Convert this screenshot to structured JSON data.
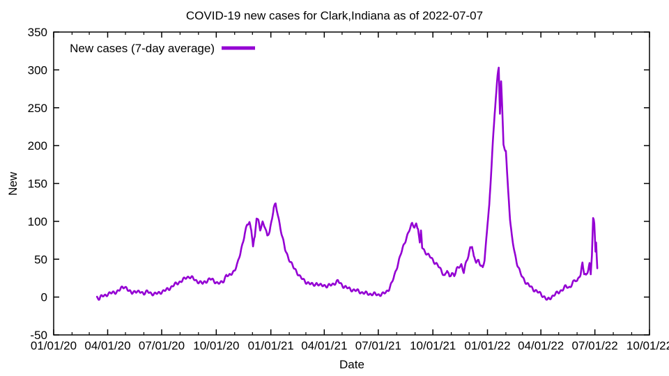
{
  "chart_data": {
    "type": "line",
    "title": "COVID-19 new cases for Clark,Indiana as of 2022-07-07",
    "xlabel": "Date",
    "ylabel": "New",
    "ylim": [
      -50,
      350
    ],
    "y_tick_step": 50,
    "y_ticks": [
      -50,
      0,
      50,
      100,
      150,
      200,
      250,
      300,
      350
    ],
    "x_range": [
      "2020-01-01",
      "2022-10-01"
    ],
    "x_ticks": [
      {
        "label": "01/01/20",
        "date": "2020-01-01"
      },
      {
        "label": "04/01/20",
        "date": "2020-04-01"
      },
      {
        "label": "07/01/20",
        "date": "2020-07-01"
      },
      {
        "label": "10/01/20",
        "date": "2020-10-01"
      },
      {
        "label": "01/01/21",
        "date": "2021-01-01"
      },
      {
        "label": "04/01/21",
        "date": "2021-04-01"
      },
      {
        "label": "07/01/21",
        "date": "2021-07-01"
      },
      {
        "label": "10/01/21",
        "date": "2021-10-01"
      },
      {
        "label": "01/01/22",
        "date": "2022-01-01"
      },
      {
        "label": "04/01/22",
        "date": "2022-04-01"
      },
      {
        "label": "07/01/22",
        "date": "2022-07-01"
      },
      {
        "label": "10/01/22",
        "date": "2022-10-01"
      }
    ],
    "x_minor_ticks": "monthly",
    "grid": false,
    "background": "#ffffff",
    "border_color": "#000000",
    "line_color": "#9400D3",
    "line_width": 2.6,
    "legend": {
      "label": "New cases (7-day average)",
      "position": "top-left-inside"
    },
    "series": [
      {
        "name": "New cases (7-day average)",
        "points": [
          [
            "2020-03-14",
            0
          ],
          [
            "2020-03-18",
            -2
          ],
          [
            "2020-03-22",
            1
          ],
          [
            "2020-03-27",
            2
          ],
          [
            "2020-04-01",
            4
          ],
          [
            "2020-04-06",
            5
          ],
          [
            "2020-04-11",
            6
          ],
          [
            "2020-04-16",
            7
          ],
          [
            "2020-04-21",
            9
          ],
          [
            "2020-04-26",
            13
          ],
          [
            "2020-04-29",
            14
          ],
          [
            "2020-05-03",
            12
          ],
          [
            "2020-05-07",
            7
          ],
          [
            "2020-05-12",
            6
          ],
          [
            "2020-05-17",
            8
          ],
          [
            "2020-05-22",
            6
          ],
          [
            "2020-05-27",
            7
          ],
          [
            "2020-06-01",
            5
          ],
          [
            "2020-06-07",
            7
          ],
          [
            "2020-06-13",
            5
          ],
          [
            "2020-06-19",
            4
          ],
          [
            "2020-06-25",
            5
          ],
          [
            "2020-07-01",
            7
          ],
          [
            "2020-07-08",
            9
          ],
          [
            "2020-07-15",
            12
          ],
          [
            "2020-07-22",
            16
          ],
          [
            "2020-07-29",
            19
          ],
          [
            "2020-08-05",
            22
          ],
          [
            "2020-08-12",
            26
          ],
          [
            "2020-08-17",
            27
          ],
          [
            "2020-08-22",
            25
          ],
          [
            "2020-08-27",
            22
          ],
          [
            "2020-09-02",
            20
          ],
          [
            "2020-09-08",
            18
          ],
          [
            "2020-09-14",
            21
          ],
          [
            "2020-09-20",
            24
          ],
          [
            "2020-09-26",
            22
          ],
          [
            "2020-10-02",
            19
          ],
          [
            "2020-10-08",
            18
          ],
          [
            "2020-10-14",
            22
          ],
          [
            "2020-10-18",
            30
          ],
          [
            "2020-10-22",
            27
          ],
          [
            "2020-10-27",
            31
          ],
          [
            "2020-11-01",
            36
          ],
          [
            "2020-11-06",
            44
          ],
          [
            "2020-11-10",
            56
          ],
          [
            "2020-11-14",
            70
          ],
          [
            "2020-11-18",
            84
          ],
          [
            "2020-11-22",
            95
          ],
          [
            "2020-11-26",
            98
          ],
          [
            "2020-11-29",
            88
          ],
          [
            "2020-12-02",
            68
          ],
          [
            "2020-12-05",
            80
          ],
          [
            "2020-12-08",
            104
          ],
          [
            "2020-12-11",
            100
          ],
          [
            "2020-12-14",
            90
          ],
          [
            "2020-12-18",
            99
          ],
          [
            "2020-12-22",
            92
          ],
          [
            "2020-12-26",
            80
          ],
          [
            "2020-12-30",
            88
          ],
          [
            "2021-01-03",
            104
          ],
          [
            "2021-01-06",
            118
          ],
          [
            "2021-01-09",
            122
          ],
          [
            "2021-01-12",
            112
          ],
          [
            "2021-01-16",
            96
          ],
          [
            "2021-01-20",
            80
          ],
          [
            "2021-01-25",
            63
          ],
          [
            "2021-01-30",
            53
          ],
          [
            "2021-02-04",
            45
          ],
          [
            "2021-02-09",
            38
          ],
          [
            "2021-02-14",
            33
          ],
          [
            "2021-02-19",
            27
          ],
          [
            "2021-02-24",
            23
          ],
          [
            "2021-03-01",
            20
          ],
          [
            "2021-03-07",
            18
          ],
          [
            "2021-03-13",
            16
          ],
          [
            "2021-03-19",
            18
          ],
          [
            "2021-03-25",
            15
          ],
          [
            "2021-03-31",
            16
          ],
          [
            "2021-04-06",
            14
          ],
          [
            "2021-04-12",
            16
          ],
          [
            "2021-04-18",
            18
          ],
          [
            "2021-04-24",
            21
          ],
          [
            "2021-04-28",
            18
          ],
          [
            "2021-05-04",
            14
          ],
          [
            "2021-05-10",
            12
          ],
          [
            "2021-05-16",
            10
          ],
          [
            "2021-05-22",
            9
          ],
          [
            "2021-05-28",
            8
          ],
          [
            "2021-06-03",
            6
          ],
          [
            "2021-06-10",
            5
          ],
          [
            "2021-06-17",
            4
          ],
          [
            "2021-06-24",
            4
          ],
          [
            "2021-07-01",
            3
          ],
          [
            "2021-07-08",
            4
          ],
          [
            "2021-07-14",
            6
          ],
          [
            "2021-07-19",
            11
          ],
          [
            "2021-07-24",
            19
          ],
          [
            "2021-07-29",
            30
          ],
          [
            "2021-08-03",
            44
          ],
          [
            "2021-08-08",
            57
          ],
          [
            "2021-08-13",
            68
          ],
          [
            "2021-08-18",
            80
          ],
          [
            "2021-08-23",
            90
          ],
          [
            "2021-08-27",
            96
          ],
          [
            "2021-08-31",
            93
          ],
          [
            "2021-09-03",
            97
          ],
          [
            "2021-09-06",
            90
          ],
          [
            "2021-09-09",
            72
          ],
          [
            "2021-09-11",
            88
          ],
          [
            "2021-09-13",
            66
          ],
          [
            "2021-09-17",
            61
          ],
          [
            "2021-09-22",
            56
          ],
          [
            "2021-09-28",
            52
          ],
          [
            "2021-10-04",
            46
          ],
          [
            "2021-10-10",
            41
          ],
          [
            "2021-10-16",
            34
          ],
          [
            "2021-10-21",
            28
          ],
          [
            "2021-10-25",
            35
          ],
          [
            "2021-10-29",
            26
          ],
          [
            "2021-11-02",
            33
          ],
          [
            "2021-11-06",
            28
          ],
          [
            "2021-11-10",
            36
          ],
          [
            "2021-11-14",
            40
          ],
          [
            "2021-11-18",
            43
          ],
          [
            "2021-11-22",
            33
          ],
          [
            "2021-11-26",
            45
          ],
          [
            "2021-11-30",
            55
          ],
          [
            "2021-12-03",
            66
          ],
          [
            "2021-12-06",
            68
          ],
          [
            "2021-12-09",
            52
          ],
          [
            "2021-12-13",
            46
          ],
          [
            "2021-12-17",
            49
          ],
          [
            "2021-12-21",
            42
          ],
          [
            "2021-12-24",
            38
          ],
          [
            "2021-12-27",
            48
          ],
          [
            "2021-12-29",
            68
          ],
          [
            "2022-01-01",
            95
          ],
          [
            "2022-01-04",
            122
          ],
          [
            "2022-01-07",
            160
          ],
          [
            "2022-01-10",
            205
          ],
          [
            "2022-01-13",
            240
          ],
          [
            "2022-01-16",
            272
          ],
          [
            "2022-01-18",
            294
          ],
          [
            "2022-01-20",
            303
          ],
          [
            "2022-01-22",
            242
          ],
          [
            "2022-01-24",
            285
          ],
          [
            "2022-01-26",
            246
          ],
          [
            "2022-01-28",
            200
          ],
          [
            "2022-02-01",
            193
          ],
          [
            "2022-02-04",
            152
          ],
          [
            "2022-02-08",
            102
          ],
          [
            "2022-02-12",
            76
          ],
          [
            "2022-02-16",
            58
          ],
          [
            "2022-02-20",
            44
          ],
          [
            "2022-02-25",
            32
          ],
          [
            "2022-03-02",
            25
          ],
          [
            "2022-03-08",
            18
          ],
          [
            "2022-03-14",
            14
          ],
          [
            "2022-03-20",
            10
          ],
          [
            "2022-03-26",
            7
          ],
          [
            "2022-04-01",
            4
          ],
          [
            "2022-04-07",
            0
          ],
          [
            "2022-04-12",
            -4
          ],
          [
            "2022-04-16",
            -2
          ],
          [
            "2022-04-20",
            1
          ],
          [
            "2022-04-25",
            4
          ],
          [
            "2022-05-01",
            6
          ],
          [
            "2022-05-07",
            10
          ],
          [
            "2022-05-13",
            14
          ],
          [
            "2022-05-18",
            12
          ],
          [
            "2022-05-23",
            17
          ],
          [
            "2022-05-28",
            22
          ],
          [
            "2022-06-01",
            20
          ],
          [
            "2022-06-04",
            28
          ],
          [
            "2022-06-07",
            30
          ],
          [
            "2022-06-10",
            45
          ],
          [
            "2022-06-13",
            30
          ],
          [
            "2022-06-16",
            28
          ],
          [
            "2022-06-19",
            35
          ],
          [
            "2022-06-22",
            45
          ],
          [
            "2022-06-24",
            30
          ],
          [
            "2022-06-26",
            55
          ],
          [
            "2022-06-28",
            103
          ],
          [
            "2022-06-30",
            97
          ],
          [
            "2022-07-02",
            60
          ],
          [
            "2022-07-03",
            72
          ],
          [
            "2022-07-05",
            38
          ]
        ]
      }
    ]
  }
}
